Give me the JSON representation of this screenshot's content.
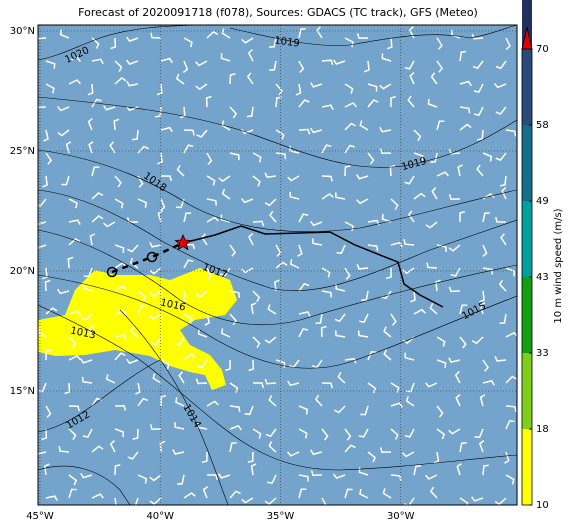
{
  "title": "Forecast of 2020091718 (f078), Sources: GDACS (TC track), GFS (Meteo)",
  "map": {
    "lon_ticks": [
      {
        "value": -45,
        "label": "45°W"
      },
      {
        "value": -40,
        "label": "40°W"
      },
      {
        "value": -35,
        "label": "35°W"
      },
      {
        "value": -30,
        "label": "30°W"
      }
    ],
    "lat_ticks": [
      {
        "value": 30,
        "label": "30°N"
      },
      {
        "value": 25,
        "label": "25°N"
      },
      {
        "value": 20,
        "label": "20°N"
      },
      {
        "value": 15,
        "label": "15°N"
      }
    ],
    "isobar_labels": [
      1020,
      1019,
      1019,
      1018,
      1017,
      1016,
      1015,
      1013,
      1012,
      1014
    ]
  },
  "colorbar": {
    "label": "10 m wind speed (m/s)",
    "ticks": [
      10,
      18,
      33,
      43,
      49,
      58,
      70
    ],
    "colors": [
      "#ffff00",
      "#7fcf1a",
      "#10a010",
      "#00a0a0",
      "#13708c",
      "#2a4a7c",
      "#22305e"
    ],
    "extend_color": "#e00000"
  }
}
